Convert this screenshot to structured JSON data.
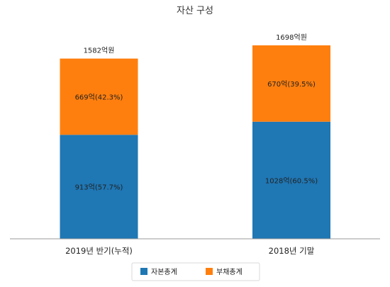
{
  "chart_data": {
    "type": "bar",
    "stacked": true,
    "title": "자산 구성",
    "categories": [
      "2019년 반기(누적)",
      "2018년 기말"
    ],
    "totals": [
      1582,
      1698
    ],
    "total_labels": [
      "1582억원",
      "1698억원"
    ],
    "series": [
      {
        "name": "자본총계",
        "color": "#1f77b4",
        "values": [
          913,
          1028
        ],
        "labels": [
          "913억(57.7%)",
          "1028억(60.5%)"
        ]
      },
      {
        "name": "부채총계",
        "color": "#ff7f0e",
        "values": [
          669,
          670
        ],
        "labels": [
          "669억(42.3%)",
          "670억(39.5%)"
        ]
      }
    ],
    "ylim": [
      0,
      1698
    ],
    "grid": false,
    "legend_position": "bottom"
  }
}
